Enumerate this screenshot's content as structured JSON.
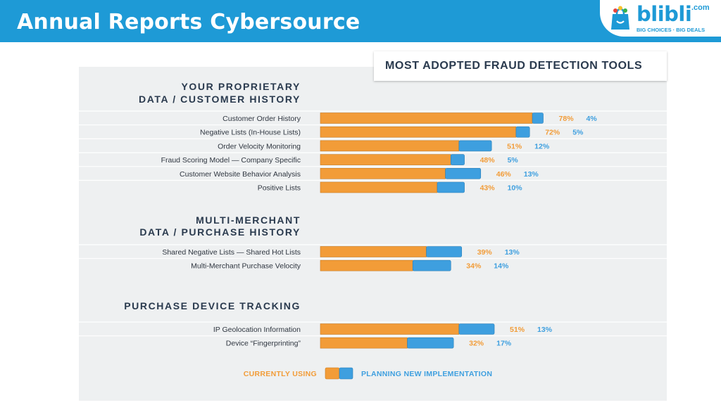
{
  "header": {
    "title": "Annual Reports Cybersource",
    "logo_text": "blibli",
    "logo_suffix": ".com",
    "logo_tagline": "BIG CHOICES · BIG DEALS"
  },
  "colors": {
    "header_bg": "#1e9ad6",
    "current": "#f29c38",
    "planned": "#3e9fdf",
    "current_label": "#f29c38",
    "planned_label": "#3e9fdf",
    "section_text": "#2a3a4e"
  },
  "chart_data": {
    "type": "bar",
    "stacked": true,
    "orientation": "horizontal",
    "title": "MOST ADOPTED FRAUD DETECTION TOOLS",
    "xlim": [
      0,
      100
    ],
    "grid": false,
    "legend": {
      "position": "bottom-center",
      "entries": [
        {
          "name": "CURRENTLY USING",
          "key": "current"
        },
        {
          "name": "PLANNING NEW IMPLEMENTATION",
          "key": "planned"
        }
      ]
    },
    "groups": [
      {
        "title_lines": [
          "YOUR PROPRIETARY",
          "DATA / CUSTOMER HISTORY"
        ],
        "rows": [
          {
            "label": "Customer Order History",
            "current": 78,
            "planned": 4
          },
          {
            "label": "Negative Lists (In-House Lists)",
            "current": 72,
            "planned": 5
          },
          {
            "label": "Order Velocity Monitoring",
            "current": 51,
            "planned": 12
          },
          {
            "label": "Fraud Scoring Model — Company Specific",
            "current": 48,
            "planned": 5
          },
          {
            "label": "Customer Website Behavior Analysis",
            "current": 46,
            "planned": 13
          },
          {
            "label": "Positive Lists",
            "current": 43,
            "planned": 10
          }
        ]
      },
      {
        "title_lines": [
          "MULTI-MERCHANT",
          "DATA / PURCHASE HISTORY"
        ],
        "rows": [
          {
            "label": "Shared Negative Lists — Shared Hot Lists",
            "current": 39,
            "planned": 13
          },
          {
            "label": "Multi-Merchant Purchase Velocity",
            "current": 34,
            "planned": 14
          }
        ]
      },
      {
        "title_lines": [
          "PURCHASE DEVICE TRACKING"
        ],
        "rows": [
          {
            "label": "IP Geolocation Information",
            "current": 51,
            "planned": 13
          },
          {
            "label": "Device “Fingerprinting”",
            "current": 32,
            "planned": 17
          }
        ]
      }
    ]
  }
}
